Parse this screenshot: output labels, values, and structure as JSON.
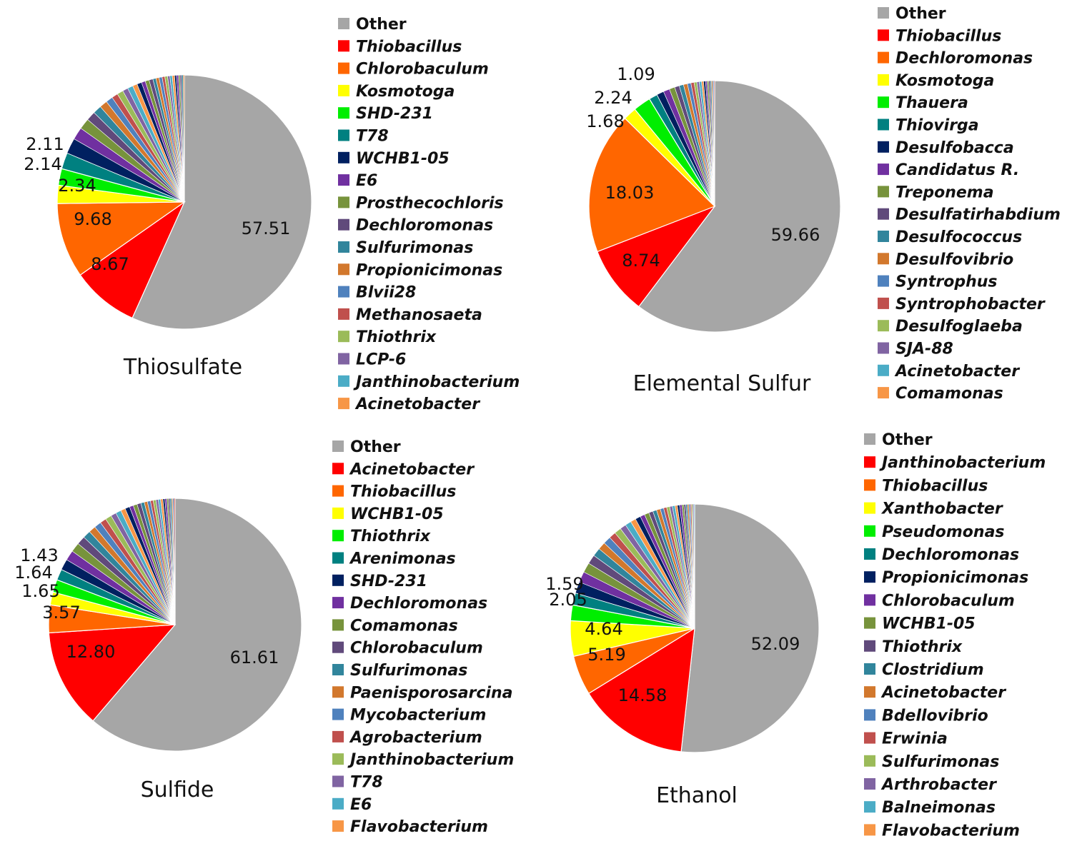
{
  "chart_data": [
    {
      "type": "pie",
      "title": "Thiosulfate",
      "other_color": "#a6a6a6",
      "labeled_slices": [
        {
          "name": "Other",
          "value": 57.51,
          "color": "#a6a6a6",
          "label": "57.51"
        },
        {
          "name": "Thiobacillus",
          "value": 8.67,
          "color": "#ff0000",
          "label": "8.67"
        },
        {
          "name": "Chlorobaculum",
          "value": 9.68,
          "color": "#ff6600",
          "label": "9.68"
        },
        {
          "name": "Kosmotoga",
          "value": 2.34,
          "color": "#ffff00",
          "label": "2.34"
        },
        {
          "name": "SHD-231",
          "value": 2.14,
          "color": "#00ee00",
          "label": "2.14"
        },
        {
          "name": "T78",
          "value": 2.11,
          "color": "#008080",
          "label": "2.11"
        }
      ],
      "legend": [
        {
          "name": "Other",
          "color": "#a6a6a6"
        },
        {
          "name": "Thiobacillus",
          "color": "#ff0000"
        },
        {
          "name": "Chlorobaculum",
          "color": "#ff6600"
        },
        {
          "name": "Kosmotoga",
          "color": "#ffff00"
        },
        {
          "name": "SHD-231",
          "color": "#00ee00"
        },
        {
          "name": "T78",
          "color": "#008080"
        },
        {
          "name": "WCHB1-05",
          "color": "#002060"
        },
        {
          "name": "E6",
          "color": "#7030a0"
        },
        {
          "name": "Prosthecochloris",
          "color": "#77933c"
        },
        {
          "name": "Dechloromonas",
          "color": "#604a7b"
        },
        {
          "name": "Sulfurimonas",
          "color": "#31859c"
        },
        {
          "name": "Propionicimonas",
          "color": "#d2782d"
        },
        {
          "name": "Blvii28",
          "color": "#4f81bd"
        },
        {
          "name": "Methanosaeta",
          "color": "#c0504d"
        },
        {
          "name": "Thiothrix",
          "color": "#9bbb59"
        },
        {
          "name": "LCP-6",
          "color": "#8064a2"
        },
        {
          "name": "Janthinobacterium",
          "color": "#4bacc6"
        },
        {
          "name": "Acinetobacter",
          "color": "#f79646"
        }
      ],
      "minor_slices": [
        2.0,
        1.6,
        1.4,
        1.2,
        1.1,
        1.0,
        0.9,
        0.8,
        0.8,
        0.7,
        0.7,
        0.6,
        0.6,
        0.5,
        0.5,
        0.5,
        0.4,
        0.4,
        0.4,
        0.35,
        0.35,
        0.3,
        0.3,
        0.3,
        0.25,
        0.25,
        0.2,
        0.2,
        0.2,
        0.15
      ]
    },
    {
      "type": "pie",
      "title": "Elemental Sulfur",
      "other_color": "#a6a6a6",
      "labeled_slices": [
        {
          "name": "Other",
          "value": 59.66,
          "color": "#a6a6a6",
          "label": "59.66"
        },
        {
          "name": "Thiobacillus",
          "value": 8.74,
          "color": "#ff0000",
          "label": "8.74"
        },
        {
          "name": "Dechloromonas",
          "value": 18.03,
          "color": "#ff6600",
          "label": "18.03"
        },
        {
          "name": "Kosmotoga",
          "value": 1.68,
          "color": "#ffff00",
          "label": "1.68"
        },
        {
          "name": "Thauera",
          "value": 2.24,
          "color": "#00ee00",
          "label": "2.24"
        },
        {
          "name": "Thiovirga",
          "value": 1.09,
          "color": "#008080",
          "label": "1.09"
        }
      ],
      "legend": [
        {
          "name": "Other",
          "color": "#a6a6a6"
        },
        {
          "name": "Thiobacillus",
          "color": "#ff0000"
        },
        {
          "name": "Dechloromonas",
          "color": "#ff6600"
        },
        {
          "name": "Kosmotoga",
          "color": "#ffff00"
        },
        {
          "name": "Thauera",
          "color": "#00ee00"
        },
        {
          "name": "Thiovirga",
          "color": "#008080"
        },
        {
          "name": "Desulfobacca",
          "color": "#002060"
        },
        {
          "name": "Candidatus R.",
          "color": "#7030a0"
        },
        {
          "name": "Treponema",
          "color": "#77933c"
        },
        {
          "name": "Desulfatirhabdium",
          "color": "#604a7b"
        },
        {
          "name": "Desulfococcus",
          "color": "#31859c"
        },
        {
          "name": "Desulfovibrio",
          "color": "#d2782d"
        },
        {
          "name": "Syntrophus",
          "color": "#4f81bd"
        },
        {
          "name": "Syntrophobacter",
          "color": "#c0504d"
        },
        {
          "name": "Desulfoglaeba",
          "color": "#9bbb59"
        },
        {
          "name": "SJA-88",
          "color": "#8064a2"
        },
        {
          "name": "Acinetobacter",
          "color": "#4bacc6"
        },
        {
          "name": "Comamonas",
          "color": "#f79646"
        }
      ],
      "minor_slices": [
        0.9,
        0.8,
        0.7,
        0.6,
        0.55,
        0.5,
        0.45,
        0.4,
        0.35,
        0.3,
        0.3,
        0.25,
        0.25,
        0.2,
        0.2,
        0.2,
        0.15,
        0.15,
        0.15,
        0.1
      ]
    },
    {
      "type": "pie",
      "title": "Sulfide",
      "other_color": "#a6a6a6",
      "labeled_slices": [
        {
          "name": "Other",
          "value": 61.61,
          "color": "#a6a6a6",
          "label": "61.61"
        },
        {
          "name": "Acinetobacter",
          "value": 12.8,
          "color": "#ff0000",
          "label": "12.80"
        },
        {
          "name": "Thiobacillus",
          "value": 3.57,
          "color": "#ff6600",
          "label": "3.57"
        },
        {
          "name": "WCHB1-05",
          "value": 1.65,
          "color": "#ffff00",
          "label": "1.65"
        },
        {
          "name": "Thiothrix",
          "value": 1.64,
          "color": "#00ee00",
          "label": "1.64"
        },
        {
          "name": "Arenimonas",
          "value": 1.43,
          "color": "#008080",
          "label": "1.43"
        }
      ],
      "legend": [
        {
          "name": "Other",
          "color": "#a6a6a6"
        },
        {
          "name": "Acinetobacter",
          "color": "#ff0000"
        },
        {
          "name": "Thiobacillus",
          "color": "#ff6600"
        },
        {
          "name": "WCHB1-05",
          "color": "#ffff00"
        },
        {
          "name": "Thiothrix",
          "color": "#00ee00"
        },
        {
          "name": "Arenimonas",
          "color": "#008080"
        },
        {
          "name": "SHD-231",
          "color": "#002060"
        },
        {
          "name": "Dechloromonas",
          "color": "#7030a0"
        },
        {
          "name": "Comamonas",
          "color": "#77933c"
        },
        {
          "name": "Chlorobaculum",
          "color": "#604a7b"
        },
        {
          "name": "Sulfurimonas",
          "color": "#31859c"
        },
        {
          "name": "Paenisporosarcina",
          "color": "#d2782d"
        },
        {
          "name": "Mycobacterium",
          "color": "#4f81bd"
        },
        {
          "name": "Agrobacterium",
          "color": "#c0504d"
        },
        {
          "name": "Janthinobacterium",
          "color": "#9bbb59"
        },
        {
          "name": "T78",
          "color": "#8064a2"
        },
        {
          "name": "E6",
          "color": "#4bacc6"
        },
        {
          "name": "Flavobacterium",
          "color": "#f79646"
        }
      ],
      "minor_slices": [
        1.4,
        1.3,
        1.2,
        1.1,
        1.0,
        0.9,
        0.9,
        0.8,
        0.8,
        0.7,
        0.7,
        0.6,
        0.6,
        0.5,
        0.5,
        0.5,
        0.45,
        0.4,
        0.4,
        0.35,
        0.35,
        0.3,
        0.3,
        0.3,
        0.25,
        0.25,
        0.2,
        0.2,
        0.2,
        0.15,
        0.15,
        0.15
      ]
    },
    {
      "type": "pie",
      "title": "Ethanol",
      "other_color": "#a6a6a6",
      "labeled_slices": [
        {
          "name": "Other",
          "value": 52.09,
          "color": "#a6a6a6",
          "label": "52.09"
        },
        {
          "name": "Janthinobacterium",
          "value": 14.58,
          "color": "#ff0000",
          "label": "14.58"
        },
        {
          "name": "Thiobacillus",
          "value": 5.19,
          "color": "#ff6600",
          "label": "5.19"
        },
        {
          "name": "Xanthobacter",
          "value": 4.64,
          "color": "#ffff00",
          "label": "4.64"
        },
        {
          "name": "Pseudomonas",
          "value": 2.05,
          "color": "#00ee00",
          "label": "2.05"
        },
        {
          "name": "Dechloromonas",
          "value": 1.59,
          "color": "#008080",
          "label": "1.59"
        }
      ],
      "legend": [
        {
          "name": "Other",
          "color": "#a6a6a6"
        },
        {
          "name": "Janthinobacterium",
          "color": "#ff0000"
        },
        {
          "name": "Thiobacillus",
          "color": "#ff6600"
        },
        {
          "name": "Xanthobacter",
          "color": "#ffff00"
        },
        {
          "name": "Pseudomonas",
          "color": "#00ee00"
        },
        {
          "name": "Dechloromonas",
          "color": "#008080"
        },
        {
          "name": "Propionicimonas",
          "color": "#002060"
        },
        {
          "name": "Chlorobaculum",
          "color": "#7030a0"
        },
        {
          "name": "WCHB1-05",
          "color": "#77933c"
        },
        {
          "name": "Thiothrix",
          "color": "#604a7b"
        },
        {
          "name": "Clostridium",
          "color": "#31859c"
        },
        {
          "name": "Acinetobacter",
          "color": "#d2782d"
        },
        {
          "name": "Bdellovibrio",
          "color": "#4f81bd"
        },
        {
          "name": "Erwinia",
          "color": "#c0504d"
        },
        {
          "name": "Sulfurimonas",
          "color": "#9bbb59"
        },
        {
          "name": "Arthrobacter",
          "color": "#8064a2"
        },
        {
          "name": "Balneimonas",
          "color": "#4bacc6"
        },
        {
          "name": "Flavobacterium",
          "color": "#f79646"
        }
      ],
      "minor_slices": [
        1.5,
        1.4,
        1.3,
        1.2,
        1.1,
        1.0,
        1.0,
        0.9,
        0.9,
        0.8,
        0.8,
        0.7,
        0.7,
        0.6,
        0.6,
        0.55,
        0.5,
        0.5,
        0.45,
        0.4,
        0.4,
        0.35,
        0.35,
        0.3,
        0.3,
        0.3,
        0.25,
        0.25,
        0.2,
        0.2,
        0.2,
        0.15,
        0.15,
        0.15,
        0.1
      ]
    }
  ]
}
